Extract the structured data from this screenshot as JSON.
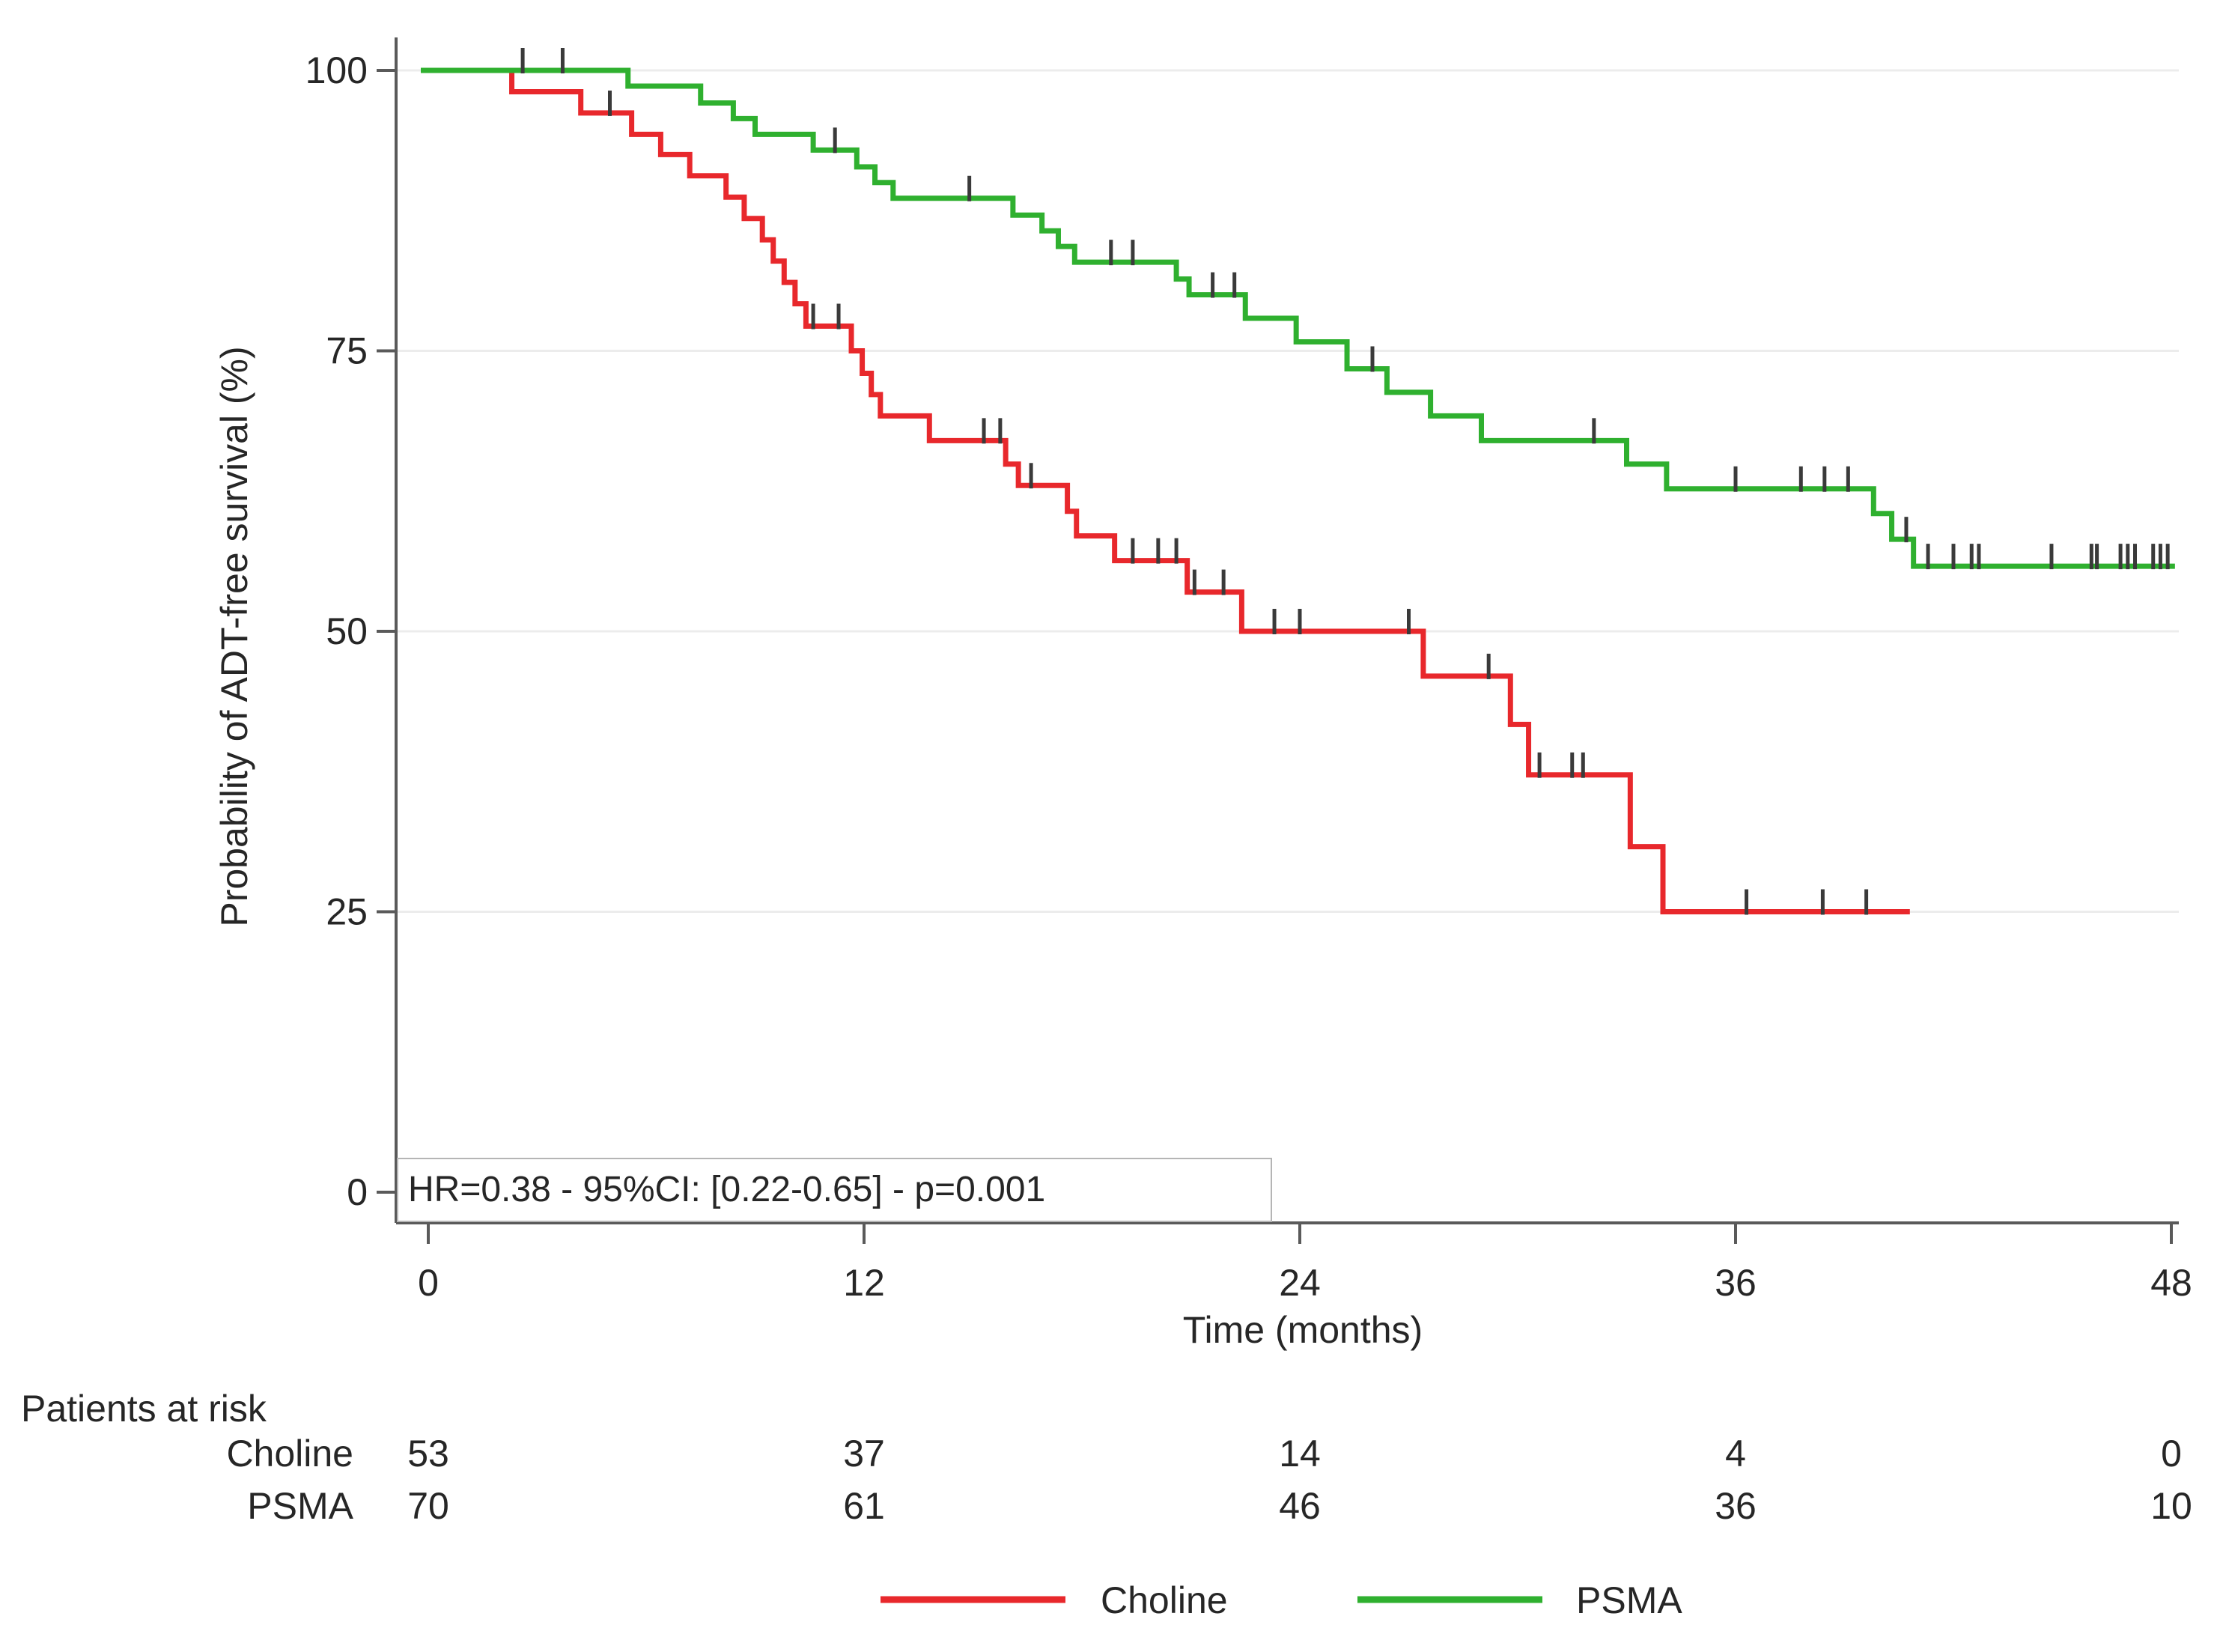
{
  "chart_data": {
    "type": "line",
    "subtype": "kaplan-meier-step",
    "title": "",
    "xlabel": "Time (months)",
    "ylabel": "Probability of ADT-free survival (%)",
    "xlim": [
      0,
      48
    ],
    "ylim": [
      0,
      100
    ],
    "x_ticks": [
      0,
      12,
      24,
      36,
      48
    ],
    "y_ticks": [
      100,
      75,
      50,
      25,
      0
    ],
    "grid": "horizontal",
    "annotation": "HR=0.38 - 95%CI: [0.22-0.65] - p=0.001",
    "legend_position": "bottom-center",
    "colors": {
      "choline": "#e8282c",
      "psma": "#2fb02f",
      "axis": "#5a5a5a",
      "gridline": "#ececec",
      "censor": "#3a3a3a",
      "text": "#262626",
      "annotation_box_border": "#b5b5b5",
      "annotation_box_fill": "#ffffff"
    },
    "series": [
      {
        "name": "Choline",
        "color": "#e8282c",
        "steps": [
          [
            0,
            100
          ],
          [
            2.3,
            98.1
          ],
          [
            4.2,
            96.2
          ],
          [
            5.6,
            94.3
          ],
          [
            6.4,
            92.5
          ],
          [
            7.2,
            90.6
          ],
          [
            8.2,
            88.7
          ],
          [
            8.7,
            86.8
          ],
          [
            9.2,
            84.9
          ],
          [
            9.5,
            83.0
          ],
          [
            9.8,
            81.1
          ],
          [
            10.1,
            79.2
          ],
          [
            10.4,
            77.2
          ],
          [
            11.65,
            75.0
          ],
          [
            11.95,
            73.0
          ],
          [
            12.2,
            71.1
          ],
          [
            12.45,
            69.2
          ],
          [
            13.8,
            67.0
          ],
          [
            15.9,
            64.9
          ],
          [
            16.25,
            63.0
          ],
          [
            17.6,
            60.7
          ],
          [
            17.85,
            58.5
          ],
          [
            18.9,
            56.3
          ],
          [
            20.9,
            53.5
          ],
          [
            22.4,
            50.0
          ],
          [
            27.4,
            46.0
          ],
          [
            29.8,
            41.7
          ],
          [
            30.3,
            37.2
          ],
          [
            33.1,
            30.8
          ],
          [
            34.0,
            25.0
          ],
          [
            40.8,
            25.0
          ]
        ],
        "censors": [
          [
            5.0,
            96.2
          ],
          [
            10.6,
            77.2
          ],
          [
            11.3,
            77.2
          ],
          [
            15.3,
            67.0
          ],
          [
            15.75,
            67.0
          ],
          [
            16.6,
            63.0
          ],
          [
            19.4,
            56.3
          ],
          [
            20.1,
            56.3
          ],
          [
            20.6,
            56.3
          ],
          [
            21.1,
            53.5
          ],
          [
            21.9,
            53.5
          ],
          [
            23.3,
            50.0
          ],
          [
            24.0,
            50.0
          ],
          [
            27.0,
            50.0
          ],
          [
            29.2,
            46.0
          ],
          [
            30.6,
            37.2
          ],
          [
            31.5,
            37.2
          ],
          [
            31.8,
            37.2
          ],
          [
            36.3,
            25.0
          ],
          [
            38.4,
            25.0
          ],
          [
            39.6,
            25.0
          ]
        ]
      },
      {
        "name": "PSMA",
        "color": "#2fb02f",
        "steps": [
          [
            0,
            100
          ],
          [
            5.5,
            98.6
          ],
          [
            7.5,
            97.1
          ],
          [
            8.4,
            95.7
          ],
          [
            9.0,
            94.3
          ],
          [
            10.6,
            92.9
          ],
          [
            11.8,
            91.4
          ],
          [
            12.3,
            90.0
          ],
          [
            12.8,
            88.6
          ],
          [
            16.1,
            87.1
          ],
          [
            16.9,
            85.7
          ],
          [
            17.35,
            84.3
          ],
          [
            17.8,
            82.9
          ],
          [
            20.6,
            81.4
          ],
          [
            20.95,
            80.0
          ],
          [
            22.5,
            77.9
          ],
          [
            23.9,
            75.8
          ],
          [
            25.3,
            73.4
          ],
          [
            26.4,
            71.3
          ],
          [
            27.6,
            69.2
          ],
          [
            29.0,
            67.0
          ],
          [
            33.0,
            64.9
          ],
          [
            34.1,
            62.7
          ],
          [
            39.8,
            60.5
          ],
          [
            40.3,
            58.2
          ],
          [
            40.9,
            55.8
          ],
          [
            48.1,
            55.8
          ]
        ],
        "censors": [
          [
            2.6,
            100
          ],
          [
            3.7,
            100
          ],
          [
            11.2,
            92.9
          ],
          [
            14.9,
            88.6
          ],
          [
            18.8,
            82.9
          ],
          [
            19.4,
            82.9
          ],
          [
            21.6,
            80.0
          ],
          [
            22.2,
            80.0
          ],
          [
            26.0,
            73.4
          ],
          [
            32.1,
            67.0
          ],
          [
            36.0,
            62.7
          ],
          [
            37.8,
            62.7
          ],
          [
            38.45,
            62.7
          ],
          [
            39.1,
            62.7
          ],
          [
            40.7,
            58.2
          ],
          [
            41.3,
            55.8
          ],
          [
            42.0,
            55.8
          ],
          [
            42.5,
            55.8
          ],
          [
            42.7,
            55.8
          ],
          [
            44.7,
            55.8
          ],
          [
            45.8,
            55.8
          ],
          [
            45.95,
            55.8
          ],
          [
            46.6,
            55.8
          ],
          [
            46.8,
            55.8
          ],
          [
            47.0,
            55.8
          ],
          [
            47.5,
            55.8
          ],
          [
            47.7,
            55.8
          ],
          [
            47.9,
            55.8
          ]
        ]
      }
    ],
    "risk_table": {
      "title": "Patients at risk",
      "times": [
        0,
        12,
        24,
        36,
        48
      ],
      "rows": [
        {
          "label": "Choline",
          "counts": [
            53,
            37,
            14,
            4,
            0
          ]
        },
        {
          "label": "PSMA",
          "counts": [
            70,
            61,
            46,
            36,
            10
          ]
        }
      ]
    }
  }
}
